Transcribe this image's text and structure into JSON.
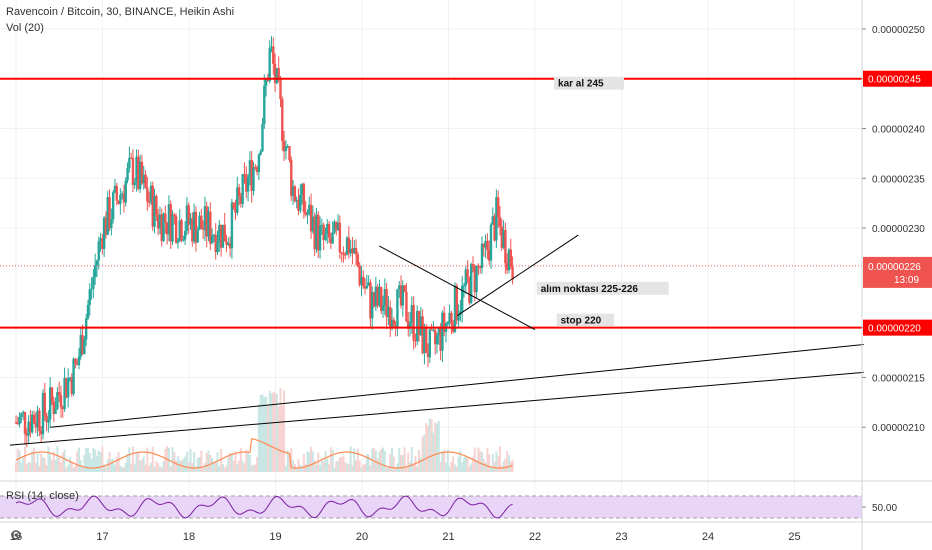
{
  "header": {
    "title": "Ravencoin / Bitcoin, 30, BINANCE, Heikin Ashi",
    "volume_label": "Vol (20)",
    "rsi_label": "RSI (14, close)"
  },
  "colors": {
    "up": "#26a69a",
    "down": "#ef5350",
    "level_line": "#ff0000",
    "trend_line": "#000000",
    "vol_ma": "#ff8a50",
    "rsi_line": "#7b1fa2",
    "rsi_band": "#e9d5f7"
  },
  "chart_data": {
    "type": "candlestick",
    "x_ticks": [
      "16",
      "17",
      "18",
      "19",
      "20",
      "21",
      "22",
      "23",
      "24",
      "25"
    ],
    "y_ticks": [
      "0.00000210",
      "0.00000215",
      "0.00000220",
      "0.00000230",
      "0.00000235",
      "0.00000240",
      "0.00000245",
      "0.00000250"
    ],
    "ylim": [
      2.055e-06,
      2.515e-06
    ],
    "last_price_label": "0.00000226",
    "last_price_value": 2.262e-06,
    "countdown": "13:09",
    "levels": [
      {
        "value": 2.45e-06,
        "label": "0.00000245",
        "note": "kar al 245"
      },
      {
        "value": 2.2e-06,
        "label": "0.00000220",
        "note": "stop 220"
      }
    ],
    "annotation_entry": "alım noktası 225-226",
    "rsi_tick": "50.00",
    "series_points": [
      {
        "day": 16.0,
        "price": 2.105e-06
      },
      {
        "day": 16.35,
        "price": 2.115e-06
      },
      {
        "day": 16.7,
        "price": 2.16e-06
      },
      {
        "day": 17.0,
        "price": 2.3e-06
      },
      {
        "day": 17.35,
        "price": 2.36e-06
      },
      {
        "day": 17.65,
        "price": 2.31e-06
      },
      {
        "day": 18.0,
        "price": 2.305e-06
      },
      {
        "day": 18.45,
        "price": 2.295e-06
      },
      {
        "day": 18.8,
        "price": 2.375e-06
      },
      {
        "day": 18.94,
        "price": 2.48e-06
      },
      {
        "day": 19.2,
        "price": 2.34e-06
      },
      {
        "day": 19.55,
        "price": 2.285e-06
      },
      {
        "day": 19.85,
        "price": 2.285e-06
      },
      {
        "day": 20.1,
        "price": 2.225e-06
      },
      {
        "day": 20.5,
        "price": 2.22e-06
      },
      {
        "day": 20.8,
        "price": 2.175e-06
      },
      {
        "day": 21.1,
        "price": 2.225e-06
      },
      {
        "day": 21.4,
        "price": 2.265e-06
      },
      {
        "day": 21.55,
        "price": 2.31e-06
      },
      {
        "day": 21.75,
        "price": 2.262e-06
      }
    ]
  }
}
